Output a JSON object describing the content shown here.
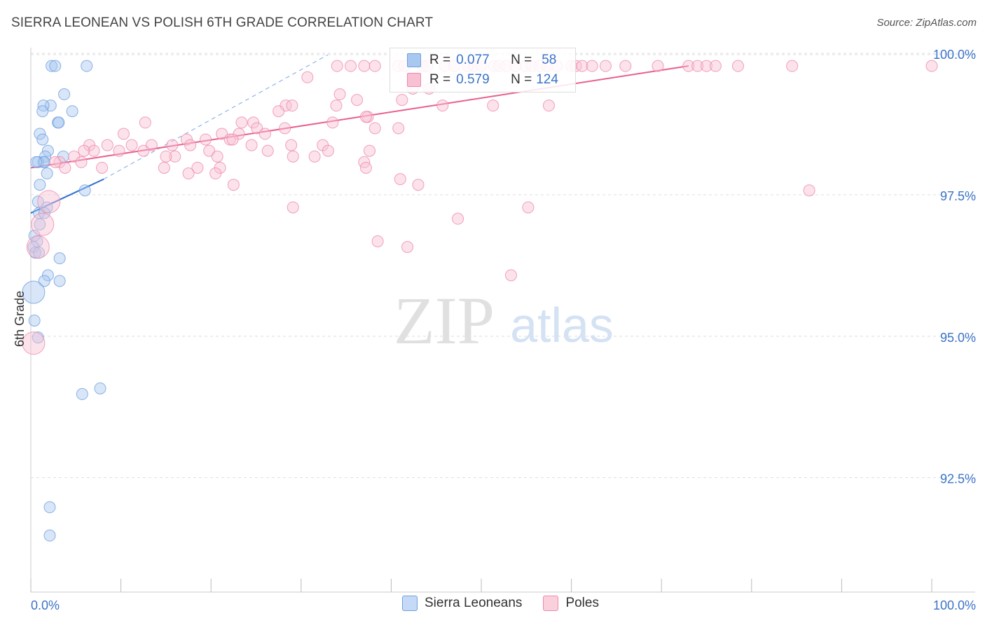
{
  "title": "SIERRA LEONEAN VS POLISH 6TH GRADE CORRELATION CHART",
  "source": "Source: ZipAtlas.com",
  "watermark": {
    "zip": "ZIP",
    "atlas": "atlas"
  },
  "stats": [
    {
      "r_label": "R =",
      "r_value": "0.077",
      "n_label": "N =",
      "n_value": "58",
      "color": "#a8c8f0",
      "border": "#6f9fe0"
    },
    {
      "r_label": "R =",
      "r_value": "0.579",
      "n_label": "N =",
      "n_value": "124",
      "color": "#f8c0d2",
      "border": "#ee8aaa"
    }
  ],
  "legend": [
    {
      "label": "Sierra Leoneans",
      "color": "#c5daf6",
      "border": "#6f9fe0"
    },
    {
      "label": "Poles",
      "color": "#fbd0dd",
      "border": "#ee8aaa"
    }
  ],
  "chart_data": {
    "type": "scatter",
    "title": "SIERRA LEONEAN VS POLISH 6TH GRADE CORRELATION CHART",
    "xlabel": "",
    "ylabel": "6th Grade",
    "xlim": [
      0,
      100
    ],
    "ylim": [
      90.7,
      100.2
    ],
    "x_tick_labels": [
      "0.0%",
      "100.0%"
    ],
    "y_ticks": [
      92.5,
      95.0,
      97.5,
      100.0
    ],
    "y_tick_labels": [
      "92.5%",
      "95.0%",
      "97.5%",
      "100.0%"
    ],
    "grid": true,
    "series": [
      {
        "name": "Sierra Leoneans",
        "color": "#6f9fe0",
        "fill": "#a8c8f0",
        "trend": {
          "x": [
            0,
            8.1
          ],
          "y": [
            97.4,
            98.0
          ],
          "color": "#2f6fd0"
        },
        "trend_ext": {
          "x": [
            8.1,
            33
          ],
          "y": [
            98.0,
            100.2
          ]
        },
        "points": [
          [
            2.3,
            100.0
          ],
          [
            2.7,
            100.0
          ],
          [
            6.2,
            100.0
          ],
          [
            3.7,
            99.5
          ],
          [
            2.2,
            99.3
          ],
          [
            1.4,
            99.3
          ],
          [
            4.6,
            99.2
          ],
          [
            1.3,
            99.2
          ],
          [
            3.0,
            99.0
          ],
          [
            3.1,
            99.0
          ],
          [
            1.0,
            98.8
          ],
          [
            1.3,
            98.7
          ],
          [
            1.9,
            98.5
          ],
          [
            3.6,
            98.4
          ],
          [
            1.6,
            98.4
          ],
          [
            1.4,
            98.3
          ],
          [
            0.8,
            98.3
          ],
          [
            1.5,
            98.3
          ],
          [
            0.6,
            98.3
          ],
          [
            1.8,
            98.1
          ],
          [
            1.0,
            97.9
          ],
          [
            6.0,
            97.8
          ],
          [
            0.8,
            97.6
          ],
          [
            1.8,
            97.5
          ],
          [
            0.9,
            97.4
          ],
          [
            1.5,
            97.4
          ],
          [
            1.0,
            97.2
          ],
          [
            0.4,
            97.0
          ],
          [
            0.7,
            96.9
          ],
          [
            0.3,
            96.8
          ],
          [
            0.5,
            96.7
          ],
          [
            0.9,
            96.7
          ],
          [
            3.2,
            96.6
          ],
          [
            1.9,
            96.3
          ],
          [
            1.5,
            96.2
          ],
          [
            3.2,
            96.2
          ],
          [
            0.3,
            96.0
          ],
          [
            0.4,
            95.5
          ],
          [
            0.8,
            95.2
          ],
          [
            7.7,
            94.3
          ],
          [
            5.7,
            94.2
          ],
          [
            2.1,
            92.2
          ],
          [
            2.1,
            91.7
          ]
        ]
      },
      {
        "name": "Poles",
        "color": "#ee8aaa",
        "fill": "#f8c0d2",
        "trend": {
          "x": [
            0,
            73
          ],
          "y": [
            98.2,
            100.0
          ],
          "color": "#e8608c"
        },
        "points": [
          [
            34.0,
            100.0
          ],
          [
            35.5,
            100.0
          ],
          [
            37.0,
            100.0
          ],
          [
            38.2,
            100.0
          ],
          [
            40.8,
            100.0
          ],
          [
            41.5,
            100.0
          ],
          [
            43.5,
            100.0
          ],
          [
            44.0,
            100.0
          ],
          [
            46.0,
            100.0
          ],
          [
            47.0,
            100.0
          ],
          [
            48.5,
            100.0
          ],
          [
            49.2,
            100.0
          ],
          [
            50.0,
            100.0
          ],
          [
            51.4,
            100.0
          ],
          [
            52.0,
            100.0
          ],
          [
            52.8,
            100.0
          ],
          [
            53.8,
            100.0
          ],
          [
            54.9,
            100.0
          ],
          [
            55.6,
            100.0
          ],
          [
            56.5,
            100.0
          ],
          [
            57.3,
            100.0
          ],
          [
            58.4,
            100.0
          ],
          [
            60.0,
            100.0
          ],
          [
            60.5,
            100.0
          ],
          [
            61.2,
            100.0
          ],
          [
            62.3,
            100.0
          ],
          [
            63.8,
            100.0
          ],
          [
            66.0,
            100.0
          ],
          [
            69.6,
            100.0
          ],
          [
            73.0,
            100.0
          ],
          [
            74.0,
            100.0
          ],
          [
            75.0,
            100.0
          ],
          [
            76.0,
            100.0
          ],
          [
            78.5,
            100.0
          ],
          [
            84.5,
            100.0
          ],
          [
            100.0,
            100.0
          ],
          [
            30.7,
            99.8
          ],
          [
            34.3,
            99.5
          ],
          [
            42.4,
            99.6
          ],
          [
            36.2,
            99.4
          ],
          [
            41.2,
            99.4
          ],
          [
            44.2,
            99.6
          ],
          [
            33.9,
            99.3
          ],
          [
            28.3,
            99.3
          ],
          [
            27.5,
            99.2
          ],
          [
            29.0,
            99.3
          ],
          [
            37.4,
            99.1
          ],
          [
            33.5,
            99.0
          ],
          [
            23.4,
            99.0
          ],
          [
            24.7,
            99.0
          ],
          [
            28.2,
            98.9
          ],
          [
            37.2,
            99.1
          ],
          [
            45.7,
            99.3
          ],
          [
            51.3,
            99.3
          ],
          [
            57.5,
            99.3
          ],
          [
            10.3,
            98.8
          ],
          [
            12.7,
            99.0
          ],
          [
            17.3,
            98.7
          ],
          [
            13.4,
            98.6
          ],
          [
            15.7,
            98.6
          ],
          [
            11.2,
            98.6
          ],
          [
            6.5,
            98.6
          ],
          [
            8.5,
            98.6
          ],
          [
            17.7,
            98.6
          ],
          [
            19.4,
            98.7
          ],
          [
            21.2,
            98.8
          ],
          [
            22.1,
            98.7
          ],
          [
            25.1,
            98.9
          ],
          [
            26.0,
            98.8
          ],
          [
            23.1,
            98.8
          ],
          [
            22.4,
            98.7
          ],
          [
            24.5,
            98.6
          ],
          [
            26.3,
            98.5
          ],
          [
            28.9,
            98.6
          ],
          [
            32.4,
            98.6
          ],
          [
            38.2,
            98.9
          ],
          [
            40.8,
            98.9
          ],
          [
            7.0,
            98.5
          ],
          [
            5.9,
            98.5
          ],
          [
            9.8,
            98.5
          ],
          [
            12.5,
            98.5
          ],
          [
            16.0,
            98.4
          ],
          [
            19.8,
            98.5
          ],
          [
            20.7,
            98.4
          ],
          [
            21.0,
            98.2
          ],
          [
            18.5,
            98.2
          ],
          [
            15.0,
            98.4
          ],
          [
            31.5,
            98.4
          ],
          [
            29.1,
            98.4
          ],
          [
            33.0,
            98.5
          ],
          [
            37.0,
            98.3
          ],
          [
            37.6,
            98.5
          ],
          [
            4.8,
            98.4
          ],
          [
            3.2,
            98.3
          ],
          [
            5.6,
            98.3
          ],
          [
            2.7,
            98.3
          ],
          [
            3.8,
            98.2
          ],
          [
            7.9,
            98.2
          ],
          [
            14.8,
            98.2
          ],
          [
            17.5,
            98.1
          ],
          [
            20.5,
            98.1
          ],
          [
            22.5,
            97.9
          ],
          [
            37.2,
            98.2
          ],
          [
            41.0,
            98.0
          ],
          [
            43.0,
            97.9
          ],
          [
            86.4,
            97.8
          ],
          [
            2.0,
            97.6
          ],
          [
            29.1,
            97.5
          ],
          [
            55.2,
            97.5
          ],
          [
            47.4,
            97.3
          ],
          [
            1.3,
            97.2
          ],
          [
            38.5,
            96.9
          ],
          [
            41.8,
            96.8
          ],
          [
            0.8,
            96.8
          ],
          [
            53.3,
            96.3
          ],
          [
            0.3,
            95.1
          ]
        ]
      }
    ]
  }
}
